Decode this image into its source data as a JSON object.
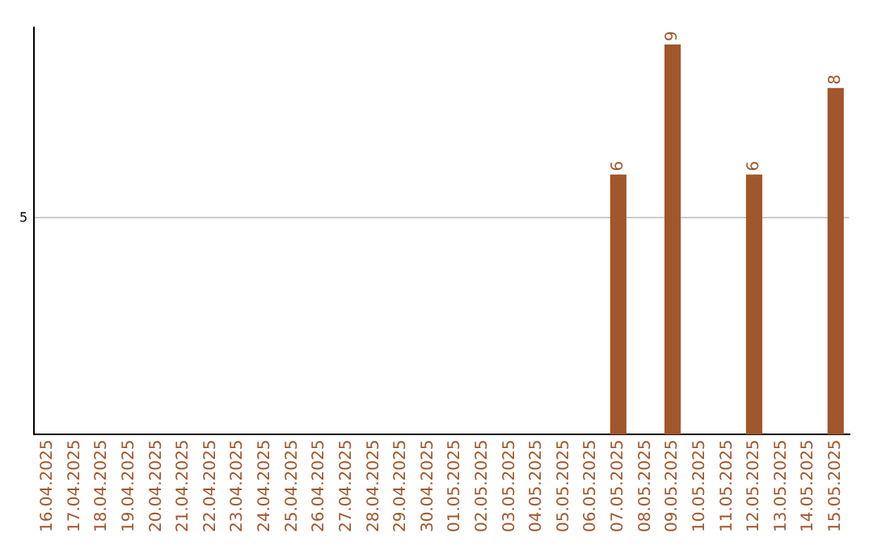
{
  "chart_data": {
    "type": "bar",
    "categories": [
      "16.04.2025",
      "17.04.2025",
      "18.04.2025",
      "19.04.2025",
      "20.04.2025",
      "21.04.2025",
      "22.04.2025",
      "23.04.2025",
      "24.04.2025",
      "25.04.2025",
      "26.04.2025",
      "27.04.2025",
      "28.04.2025",
      "29.04.2025",
      "30.04.2025",
      "01.05.2025",
      "02.05.2025",
      "03.05.2025",
      "04.05.2025",
      "05.05.2025",
      "06.05.2025",
      "07.05.2025",
      "08.05.2025",
      "09.05.2025",
      "10.05.2025",
      "11.05.2025",
      "12.05.2025",
      "13.05.2025",
      "14.05.2025",
      "15.05.2025"
    ],
    "values": [
      null,
      null,
      null,
      null,
      null,
      null,
      null,
      null,
      null,
      null,
      null,
      null,
      null,
      null,
      null,
      null,
      null,
      null,
      null,
      null,
      null,
      6,
      null,
      9,
      null,
      null,
      6,
      null,
      null,
      8
    ],
    "color": "#a0572b",
    "ylim": [
      0,
      9.4
    ],
    "yticks": [
      5
    ],
    "grid": "y",
    "data_labels": true,
    "legend": false
  }
}
